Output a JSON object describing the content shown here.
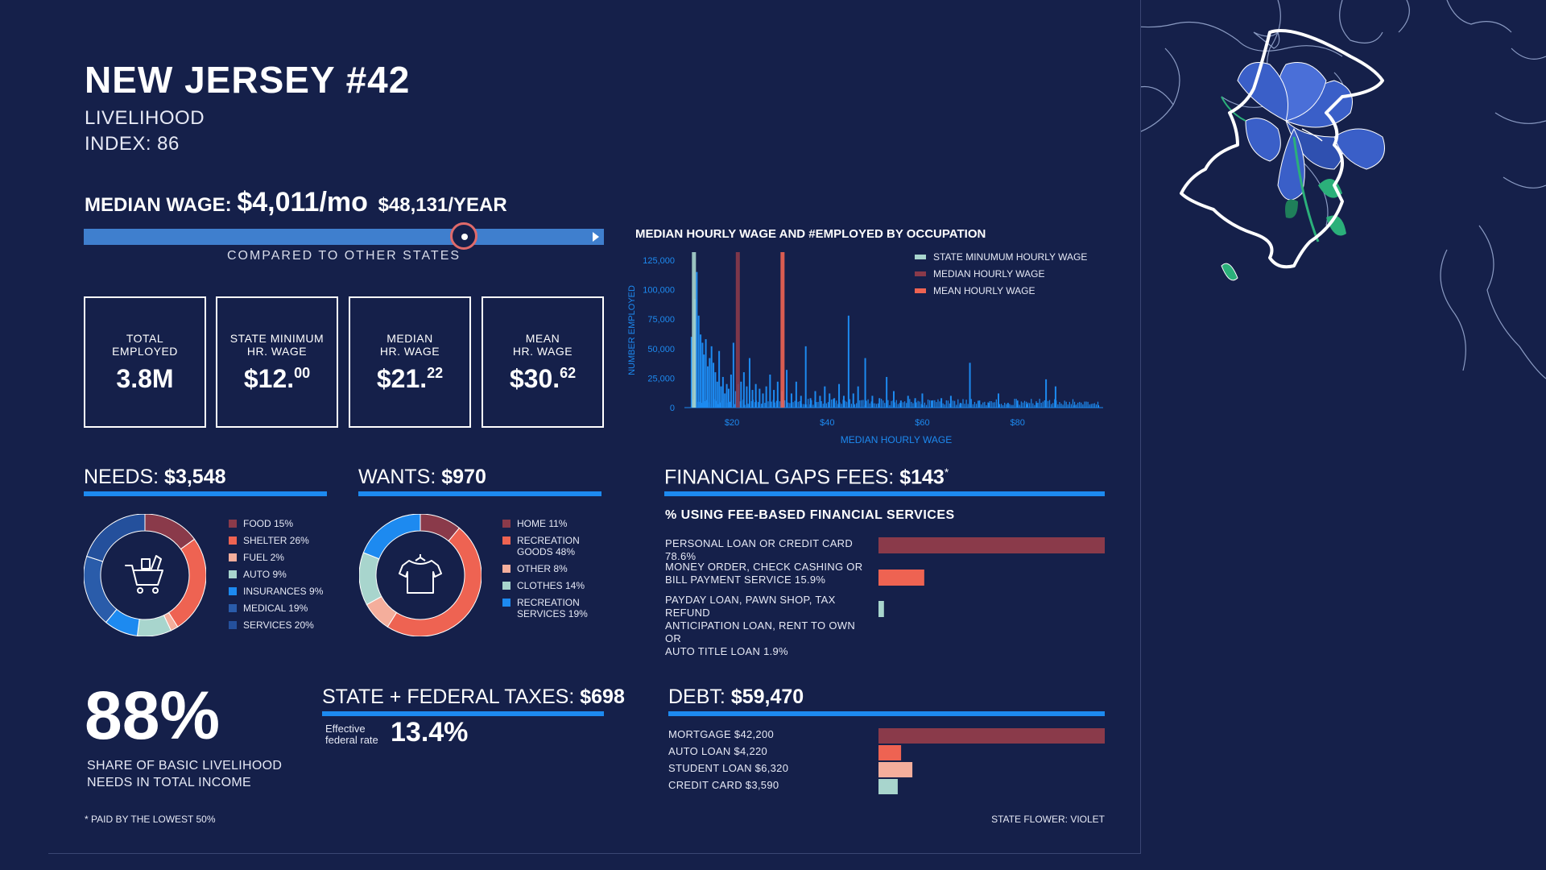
{
  "header": {
    "title": "NEW JERSEY #42",
    "subtitle_line1": "LIVELIHOOD",
    "subtitle_line2": "INDEX: 86"
  },
  "median_wage": {
    "label": "MEDIAN WAGE:",
    "monthly": "$4,011/mo",
    "yearly": "$48,131/YEAR",
    "compared_label": "COMPARED TO OTHER STATES",
    "position_fraction": 0.73
  },
  "stats": [
    {
      "label1": "TOTAL",
      "label2": "EMPLOYED",
      "value": "3.8M",
      "sup": ""
    },
    {
      "label1": "STATE MINIMUM",
      "label2": "HR. WAGE",
      "value": "$12.",
      "sup": "00"
    },
    {
      "label1": "MEDIAN",
      "label2": "HR. WAGE",
      "value": "$21.",
      "sup": "22"
    },
    {
      "label1": "MEAN",
      "label2": "HR. WAGE",
      "value": "$30.",
      "sup": "62"
    }
  ],
  "needs": {
    "label": "NEEDS:",
    "value": "$3,548"
  },
  "wants": {
    "label": "WANTS:",
    "value": "$970"
  },
  "fin_gaps": {
    "label": "FINANCIAL GAPS FEES:",
    "value": "$143",
    "mark": "*",
    "subtitle": "% USING FEE-BASED FINANCIAL SERVICES"
  },
  "fin_labels": [
    {
      "line1": "PERSONAL LOAN OR CREDIT CARD 78.6%",
      "line2": "",
      "line3": ""
    },
    {
      "line1": "MONEY ORDER, CHECK CASHING OR",
      "line2": "BILL PAYMENT SERVICE 15.9%",
      "line3": ""
    },
    {
      "line1": "PAYDAY LOAN, PAWN SHOP, TAX REFUND",
      "line2": "ANTICIPATION LOAN, RENT TO OWN OR",
      "line3": "AUTO TITLE LOAN 1.9%"
    }
  ],
  "taxes": {
    "label": "STATE + FEDERAL TAXES:",
    "value": "$698",
    "rate_label1": "Effective",
    "rate_label2": "federal rate",
    "rate": "13.4%"
  },
  "debt": {
    "label": "DEBT:",
    "value": "$59,470"
  },
  "share": {
    "value": "88%",
    "line1": "SHARE OF BASIC LIVELIHOOD",
    "line2": "NEEDS IN TOTAL INCOME"
  },
  "footer": {
    "note": "* PAID BY THE LOWEST 50%",
    "flower": "STATE FLOWER: VIOLET"
  },
  "colors": {
    "background": "#15204a",
    "accent_blue": "#1d8af0",
    "maroon": "#8a3a4a",
    "coral": "#ee6352",
    "peach": "#f4ae9c",
    "mint": "#a8d5cd",
    "mid_blue": "#2a5caa",
    "flower_blue": "#3a5fc8",
    "leaf_green": "#2bb07a"
  },
  "icons": {
    "needs": "shopping-cart-icon",
    "wants": "tshirt-icon",
    "map": "new-jersey-map-icon",
    "flower": "violet-flower-icon"
  },
  "chart_data": [
    {
      "type": "bar",
      "title": "MEDIAN HOURLY WAGE AND #EMPLOYED BY OCCUPATION",
      "xlabel": "MEDIAN HOURLY WAGE",
      "ylabel": "NUMBER EMPLOYED",
      "xlim": [
        10,
        98
      ],
      "ylim": [
        0,
        125000
      ],
      "xticks": [
        "$20",
        "$40",
        "$60",
        "$80"
      ],
      "yticks": [
        "125,000",
        "100,000",
        "75,000",
        "50,000",
        "25,000",
        "0"
      ],
      "legend_position": "top-right",
      "reference_lines": [
        {
          "name": "STATE MINUMUM HOURLY WAGE",
          "x": 12.0,
          "color": "#a8d5cd"
        },
        {
          "name": "MEDIAN HOURLY WAGE",
          "x": 21.22,
          "color": "#8a3a4a"
        },
        {
          "name": "MEAN HOURLY WAGE",
          "x": 30.62,
          "color": "#ee6352"
        }
      ],
      "series": [
        {
          "color": "#1d8af0",
          "x": [
            11.5,
            12.2,
            12.6,
            13.0,
            13.4,
            13.8,
            14.1,
            14.5,
            14.9,
            15.3,
            15.7,
            16.1,
            16.5,
            16.9,
            17.3,
            17.7,
            18.1,
            18.5,
            18.9,
            19.3,
            19.8,
            20.3,
            20.8,
            21.3,
            21.9,
            22.5,
            23.1,
            23.7,
            24.3,
            25.0,
            25.8,
            26.5,
            27.2,
            28.0,
            28.8,
            29.6,
            30.5,
            31.5,
            32.5,
            33.5,
            34.5,
            35.5,
            36.5,
            37.5,
            38.5,
            39.5,
            40.5,
            41.5,
            42.5,
            43.5,
            44.5,
            45.5,
            46.5,
            48.0,
            49.5,
            51.0,
            52.5,
            54.0,
            55.5,
            57.0,
            58.5,
            60.0,
            62.0,
            64.0,
            66.0,
            68.0,
            70.0,
            72.0,
            74.0,
            76.0,
            78.0,
            80.0,
            82.0,
            84.0,
            86.0,
            88.0,
            92.0,
            97.0
          ],
          "values": [
            60000,
            92000,
            115000,
            78000,
            62000,
            55000,
            45000,
            58000,
            35000,
            42000,
            52000,
            38000,
            30000,
            22000,
            48000,
            18000,
            26000,
            12000,
            20000,
            16000,
            28000,
            55000,
            14000,
            20000,
            22000,
            30000,
            18000,
            42000,
            15000,
            20000,
            16000,
            12000,
            18000,
            28000,
            15000,
            22000,
            14000,
            32000,
            12000,
            22000,
            10000,
            52000,
            8000,
            14000,
            10000,
            18000,
            12000,
            8000,
            20000,
            10000,
            78000,
            12000,
            18000,
            42000,
            10000,
            8000,
            26000,
            14000,
            6000,
            10000,
            8000,
            12000,
            6000,
            8000,
            10000,
            4000,
            38000,
            6000,
            4000,
            12000,
            4000,
            6000,
            3000,
            4000,
            24000,
            18000,
            2000,
            2000
          ]
        }
      ]
    },
    {
      "type": "pie",
      "title": "NEEDS",
      "categories": [
        "FOOD 15%",
        "SHELTER 26%",
        "FUEL 2%",
        "AUTO 9%",
        "INSURANCES 9%",
        "MEDICAL 19%",
        "SERVICES 20%"
      ],
      "values": [
        15,
        26,
        2,
        9,
        9,
        19,
        20
      ],
      "colors": [
        "#8a3a4a",
        "#ee6352",
        "#f4ae9c",
        "#a8d5cd",
        "#1d8af0",
        "#2a5caa",
        "#24509c"
      ]
    },
    {
      "type": "pie",
      "title": "WANTS",
      "categories": [
        "HOME 11%",
        "RECREATION GOODS 48%",
        "OTHER 8%",
        "CLOTHES 14%",
        "RECREATION SERVICES 19%"
      ],
      "categories_lines": [
        [
          "HOME 11%"
        ],
        [
          "RECREATION",
          "GOODS 48%"
        ],
        [
          "OTHER 8%"
        ],
        [
          "CLOTHES 14%"
        ],
        [
          "RECREATION",
          "SERVICES 19%"
        ]
      ],
      "values": [
        11,
        48,
        8,
        14,
        19
      ],
      "colors": [
        "#8a3a4a",
        "#ee6352",
        "#f4ae9c",
        "#a8d5cd",
        "#1d8af0"
      ]
    },
    {
      "type": "bar",
      "title": "% USING FEE-BASED FINANCIAL SERVICES",
      "orientation": "horizontal",
      "categories": [
        "PERSONAL LOAN OR CREDIT CARD",
        "MONEY ORDER, CHECK CASHING OR BILL PAYMENT SERVICE",
        "PAYDAY LOAN, PAWN SHOP, TAX REFUND ANTICIPATION LOAN, RENT TO OWN OR AUTO TITLE LOAN"
      ],
      "values": [
        78.6,
        15.9,
        1.9
      ],
      "xlim": [
        0,
        78.6
      ],
      "colors": [
        "#8a3a4a",
        "#ee6352",
        "#a8d5cd"
      ]
    },
    {
      "type": "bar",
      "title": "DEBT",
      "orientation": "horizontal",
      "categories": [
        "MORTGAGE $42,200",
        "AUTO LOAN $4,220",
        "STUDENT LOAN $6,320",
        "CREDIT CARD $3,590"
      ],
      "values": [
        42200,
        4220,
        6320,
        3590
      ],
      "xlim": [
        0,
        42200
      ],
      "colors": [
        "#8a3a4a",
        "#ee6352",
        "#f4ae9c",
        "#a8d5cd"
      ]
    }
  ]
}
